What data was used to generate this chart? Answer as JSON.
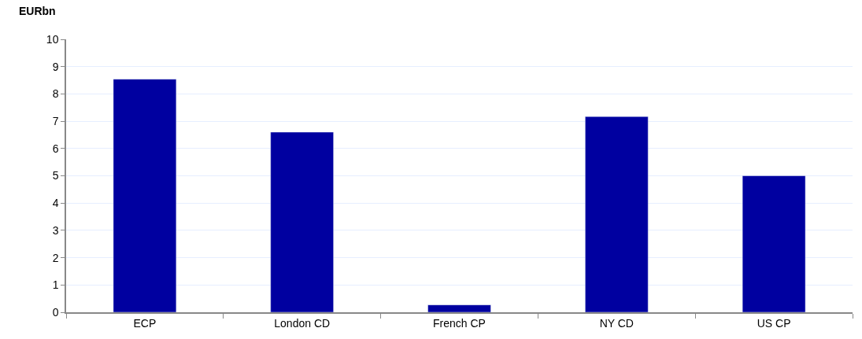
{
  "chart_data": {
    "type": "bar",
    "ylabel": "EURbn",
    "categories": [
      "ECP",
      "London CD",
      "French CP",
      "NY CD",
      "US CP"
    ],
    "values": [
      8.54,
      6.6,
      0.27,
      7.17,
      5.0
    ],
    "color": "#0000a0",
    "ylim": [
      0,
      10
    ],
    "yticks": [
      0,
      1,
      2,
      3,
      4,
      5,
      6,
      7,
      8,
      9,
      10
    ],
    "grid": "y"
  }
}
